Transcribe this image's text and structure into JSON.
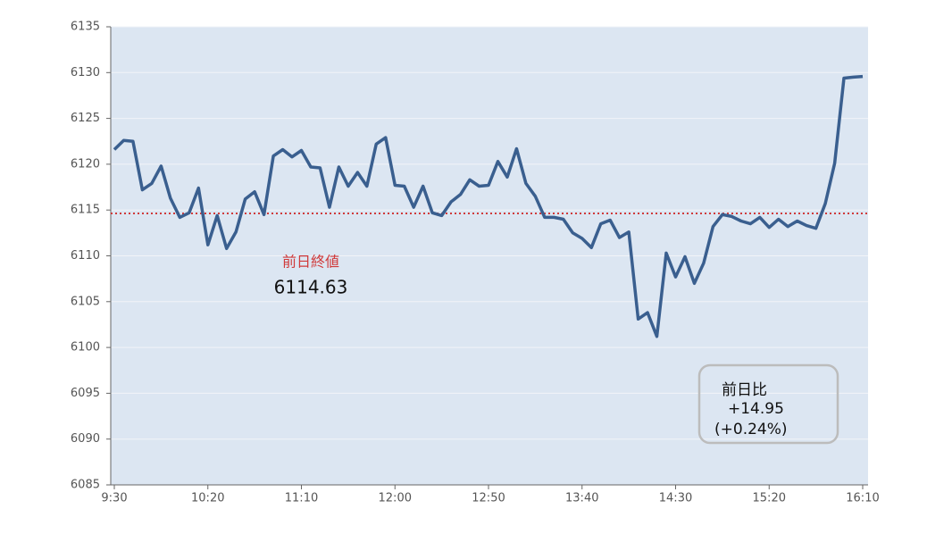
{
  "chart_data": {
    "type": "line",
    "categories": [
      "9:30",
      null,
      null,
      null,
      null,
      null,
      null,
      null,
      null,
      null,
      "10:20",
      null,
      null,
      null,
      null,
      null,
      null,
      null,
      null,
      null,
      "11:10",
      null,
      null,
      null,
      null,
      null,
      null,
      null,
      null,
      null,
      "12:00",
      null,
      null,
      null,
      null,
      null,
      null,
      null,
      null,
      null,
      "12:50",
      null,
      null,
      null,
      null,
      null,
      null,
      null,
      null,
      null,
      "13:40",
      null,
      null,
      null,
      null,
      null,
      null,
      null,
      null,
      null,
      "14:30",
      null,
      null,
      null,
      null,
      null,
      null,
      null,
      null,
      null,
      "15:20",
      null,
      null,
      null,
      null,
      null,
      null,
      null,
      null,
      null,
      "16:10"
    ],
    "values": [
      6121.6,
      6122.6,
      6122.5,
      6117.2,
      6117.9,
      6119.8,
      6116.3,
      6114.2,
      6114.7,
      6117.4,
      6111.2,
      6114.4,
      6110.8,
      6112.6,
      6116.2,
      6117.0,
      6114.5,
      6120.9,
      6121.6,
      6120.8,
      6121.5,
      6119.7,
      6119.6,
      6115.3,
      6119.7,
      6117.6,
      6119.1,
      6117.6,
      6122.2,
      6122.9,
      6117.7,
      6117.6,
      6115.3,
      6117.6,
      6114.7,
      6114.4,
      6115.9,
      6116.7,
      6118.3,
      6117.6,
      6117.7,
      6120.3,
      6118.6,
      6121.7,
      6117.9,
      6116.5,
      6114.2,
      6114.2,
      6114.0,
      6112.5,
      6111.9,
      6110.9,
      6113.5,
      6113.9,
      6112.0,
      6112.6,
      6103.1,
      6103.8,
      6101.2,
      6110.3,
      6107.7,
      6109.9,
      6107.0,
      6109.2,
      6113.2,
      6114.5,
      6114.3,
      6113.8,
      6113.5,
      6114.2,
      6113.1,
      6114.0,
      6113.2,
      6113.8,
      6113.3,
      6113.0,
      6115.7,
      6120.1,
      6129.4,
      6129.5,
      6129.58
    ],
    "color": "#3a5f8f",
    "ylim": [
      6085,
      6135
    ],
    "yticks": [
      6085,
      6090,
      6095,
      6100,
      6105,
      6110,
      6115,
      6120,
      6125,
      6130,
      6135
    ],
    "grid": true,
    "reference": {
      "label": "前日終値",
      "value": 6114.63,
      "color": "#d03a3a"
    },
    "change_box": {
      "label": "前日比",
      "change": "+14.95",
      "percent": "(+0.24%)"
    }
  }
}
